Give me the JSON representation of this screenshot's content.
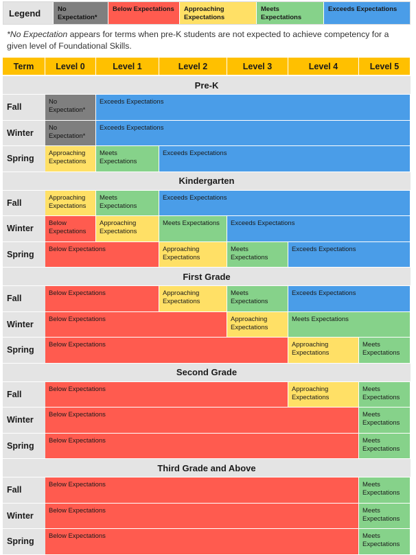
{
  "legend": {
    "label": "Legend",
    "items": [
      {
        "key": "none",
        "text": "No Expectation*"
      },
      {
        "key": "below",
        "text": "Below Expectations"
      },
      {
        "key": "approach",
        "text": "Approaching Expectations"
      },
      {
        "key": "meets",
        "text": "Meets Expectations"
      },
      {
        "key": "exceeds",
        "text": "Exceeds Expectations"
      }
    ]
  },
  "footnote": {
    "emphasis": "*No Expectation",
    "text": " appears for terms when pre-K students are not expected to achieve competency for a given level of Foundational Skills."
  },
  "header": [
    "Term",
    "Level 0",
    "Level 1",
    "Level 2",
    "Level 3",
    "Level 4",
    "Level 5"
  ],
  "colors": {
    "none": "#7f7f7f",
    "below": "#ff5b4f",
    "approach": "#ffe066",
    "meets": "#86d28a",
    "exceeds": "#4a9de8",
    "header": "#ffc000"
  },
  "labels": {
    "none": "No Expectation*",
    "below": "Below Expectations",
    "approach": "Approaching Expectations",
    "meets": "Meets Expectations",
    "exceeds": "Exceeds Expectations"
  },
  "sections": [
    {
      "title": "Pre-K",
      "rows": [
        {
          "term": "Fall",
          "segments": [
            {
              "s": 0,
              "e": 0,
              "k": "none"
            },
            {
              "s": 1,
              "e": 5,
              "k": "exceeds"
            }
          ]
        },
        {
          "term": "Winter",
          "segments": [
            {
              "s": 0,
              "e": 0,
              "k": "none"
            },
            {
              "s": 1,
              "e": 5,
              "k": "exceeds"
            }
          ]
        },
        {
          "term": "Spring",
          "segments": [
            {
              "s": 0,
              "e": 0,
              "k": "approach"
            },
            {
              "s": 1,
              "e": 1,
              "k": "meets"
            },
            {
              "s": 2,
              "e": 5,
              "k": "exceeds"
            }
          ]
        }
      ]
    },
    {
      "title": "Kindergarten",
      "rows": [
        {
          "term": "Fall",
          "segments": [
            {
              "s": 0,
              "e": 0,
              "k": "approach"
            },
            {
              "s": 1,
              "e": 1,
              "k": "meets"
            },
            {
              "s": 2,
              "e": 5,
              "k": "exceeds"
            }
          ]
        },
        {
          "term": "Winter",
          "segments": [
            {
              "s": 0,
              "e": 0,
              "k": "below"
            },
            {
              "s": 1,
              "e": 1,
              "k": "approach"
            },
            {
              "s": 2,
              "e": 2,
              "k": "meets"
            },
            {
              "s": 3,
              "e": 5,
              "k": "exceeds"
            }
          ]
        },
        {
          "term": "Spring",
          "segments": [
            {
              "s": 0,
              "e": 1,
              "k": "below"
            },
            {
              "s": 2,
              "e": 2,
              "k": "approach"
            },
            {
              "s": 3,
              "e": 3,
              "k": "meets"
            },
            {
              "s": 4,
              "e": 5,
              "k": "exceeds"
            }
          ]
        }
      ]
    },
    {
      "title": "First Grade",
      "rows": [
        {
          "term": "Fall",
          "segments": [
            {
              "s": 0,
              "e": 1,
              "k": "below"
            },
            {
              "s": 2,
              "e": 2,
              "k": "approach"
            },
            {
              "s": 3,
              "e": 3,
              "k": "meets"
            },
            {
              "s": 4,
              "e": 5,
              "k": "exceeds"
            }
          ]
        },
        {
          "term": "Winter",
          "segments": [
            {
              "s": 0,
              "e": 2,
              "k": "below"
            },
            {
              "s": 3,
              "e": 3,
              "k": "approach"
            },
            {
              "s": 4,
              "e": 5,
              "k": "meets"
            }
          ]
        },
        {
          "term": "Spring",
          "segments": [
            {
              "s": 0,
              "e": 3,
              "k": "below"
            },
            {
              "s": 4,
              "e": 4,
              "k": "approach"
            },
            {
              "s": 5,
              "e": 5,
              "k": "meets"
            }
          ]
        }
      ]
    },
    {
      "title": "Second Grade",
      "rows": [
        {
          "term": "Fall",
          "segments": [
            {
              "s": 0,
              "e": 3,
              "k": "below"
            },
            {
              "s": 4,
              "e": 4,
              "k": "approach"
            },
            {
              "s": 5,
              "e": 5,
              "k": "meets"
            }
          ]
        },
        {
          "term": "Winter",
          "segments": [
            {
              "s": 0,
              "e": 4,
              "k": "below"
            },
            {
              "s": 5,
              "e": 5,
              "k": "meets"
            }
          ]
        },
        {
          "term": "Spring",
          "segments": [
            {
              "s": 0,
              "e": 4,
              "k": "below"
            },
            {
              "s": 5,
              "e": 5,
              "k": "meets"
            }
          ]
        }
      ]
    },
    {
      "title": "Third Grade and Above",
      "rows": [
        {
          "term": "Fall",
          "segments": [
            {
              "s": 0,
              "e": 4,
              "k": "below"
            },
            {
              "s": 5,
              "e": 5,
              "k": "meets"
            }
          ]
        },
        {
          "term": "Winter",
          "segments": [
            {
              "s": 0,
              "e": 4,
              "k": "below"
            },
            {
              "s": 5,
              "e": 5,
              "k": "meets"
            }
          ]
        },
        {
          "term": "Spring",
          "segments": [
            {
              "s": 0,
              "e": 4,
              "k": "below"
            },
            {
              "s": 5,
              "e": 5,
              "k": "meets"
            }
          ]
        }
      ]
    }
  ]
}
